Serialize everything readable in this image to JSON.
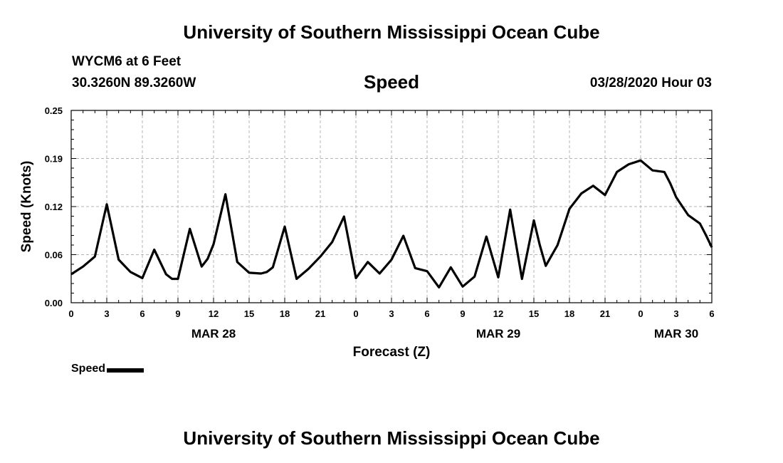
{
  "header": {
    "title": "University of Southern Mississippi Ocean Cube",
    "station": "WYCM6 at 6 Feet",
    "coords": "30.3260N 89.3260W",
    "timestamp": "03/28/2020 Hour 03"
  },
  "footer": {
    "title": "University of Southern Mississippi Ocean Cube"
  },
  "chart_data": {
    "type": "line",
    "title": "Speed",
    "xlabel": "Forecast (Z)",
    "ylabel": "Speed (Knots)",
    "ylim": [
      0,
      0.25
    ],
    "yticks": [
      "0.00",
      "0.06",
      "0.12",
      "0.19",
      "0.25"
    ],
    "ytick_values": [
      0,
      0.0625,
      0.125,
      0.1875,
      0.25
    ],
    "xlim": [
      0,
      54
    ],
    "xticks": [
      "0",
      "3",
      "6",
      "9",
      "12",
      "15",
      "18",
      "21",
      "0",
      "3",
      "6",
      "9",
      "12",
      "15",
      "18",
      "21",
      "0",
      "3",
      "6"
    ],
    "date_labels": [
      {
        "label": "MAR 28",
        "hour": 12
      },
      {
        "label": "MAR 29",
        "hour": 36
      },
      {
        "label": "MAR 30",
        "hour": 51
      }
    ],
    "grid": true,
    "legend": "bottom-left",
    "series": [
      {
        "name": "Speed",
        "color": "#000000",
        "x": [
          0,
          1,
          2,
          3,
          4,
          5,
          6,
          7,
          8,
          8.5,
          9,
          10,
          11,
          11.5,
          12,
          13,
          14,
          15,
          16,
          16.5,
          17,
          18,
          19,
          20,
          21,
          22,
          23,
          24,
          25,
          26,
          27,
          28,
          29,
          30,
          31,
          32,
          33,
          34,
          35,
          36,
          37,
          38,
          39,
          39.5,
          40,
          41,
          42,
          43,
          44,
          45,
          46,
          47,
          48,
          49,
          50,
          50.5,
          51,
          52,
          53,
          53.5,
          54
        ],
        "y": [
          0.037,
          0.047,
          0.06,
          0.128,
          0.056,
          0.04,
          0.032,
          0.069,
          0.037,
          0.031,
          0.031,
          0.096,
          0.047,
          0.057,
          0.076,
          0.141,
          0.053,
          0.039,
          0.038,
          0.04,
          0.046,
          0.099,
          0.031,
          0.044,
          0.06,
          0.079,
          0.112,
          0.032,
          0.053,
          0.038,
          0.056,
          0.087,
          0.045,
          0.041,
          0.02,
          0.046,
          0.021,
          0.034,
          0.086,
          0.033,
          0.121,
          0.031,
          0.107,
          0.075,
          0.048,
          0.075,
          0.122,
          0.142,
          0.152,
          0.14,
          0.17,
          0.18,
          0.185,
          0.172,
          0.17,
          0.155,
          0.137,
          0.114,
          0.103,
          0.088,
          0.072
        ]
      }
    ]
  }
}
